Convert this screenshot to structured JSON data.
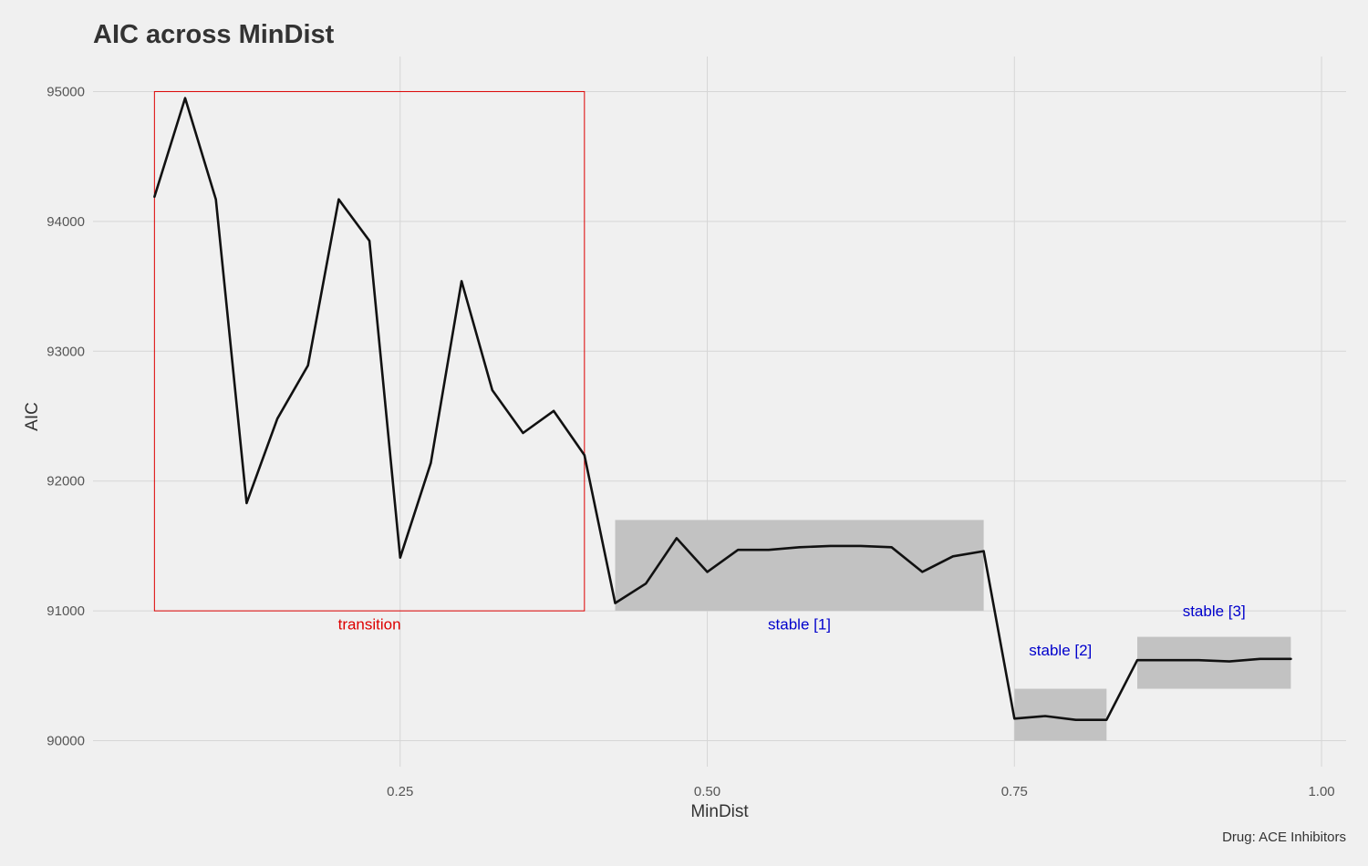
{
  "chart_data": {
    "type": "line",
    "title": "AIC across MinDist",
    "xlabel": "MinDist",
    "ylabel": "AIC",
    "caption": "Drug: ACE Inhibitors",
    "xlim": [
      0.0,
      1.02
    ],
    "ylim": [
      89800,
      95270
    ],
    "x_ticks": [
      0.25,
      0.5,
      0.75,
      1.0
    ],
    "x_tick_labels": [
      "0.25",
      "0.50",
      "0.75",
      "1.00"
    ],
    "y_ticks": [
      90000,
      91000,
      92000,
      93000,
      94000,
      95000
    ],
    "y_tick_labels": [
      "90000",
      "91000",
      "92000",
      "93000",
      "94000",
      "95000"
    ],
    "grid": true,
    "series": [
      {
        "color": "#111111",
        "x": [
          0.05,
          0.075,
          0.1,
          0.125,
          0.15,
          0.175,
          0.2,
          0.225,
          0.25,
          0.275,
          0.3,
          0.325,
          0.35,
          0.375,
          0.4,
          0.425,
          0.45,
          0.475,
          0.5,
          0.525,
          0.55,
          0.575,
          0.6,
          0.625,
          0.65,
          0.675,
          0.7,
          0.725,
          0.75,
          0.775,
          0.8,
          0.825,
          0.85,
          0.875,
          0.9,
          0.925,
          0.95,
          0.975
        ],
        "y": [
          94190,
          94950,
          94170,
          91830,
          92480,
          92890,
          94170,
          93850,
          91410,
          92140,
          93540,
          92700,
          92370,
          92540,
          92200,
          91060,
          91210,
          91560,
          91300,
          91470,
          91470,
          91490,
          91500,
          91500,
          91490,
          91300,
          91420,
          91460,
          90170,
          90190,
          90160,
          90160,
          90620,
          90620,
          90620,
          90610,
          90630,
          90630
        ]
      }
    ],
    "regions": [
      {
        "label": "transition",
        "kind": "outline",
        "x": [
          0.05,
          0.4
        ],
        "y": [
          91000,
          95000
        ],
        "color": "#dd0000",
        "label_x": 0.225,
        "label_y": 90900
      },
      {
        "label": "stable [1]",
        "kind": "shaded",
        "x": [
          0.425,
          0.725
        ],
        "y": [
          91000,
          91700
        ],
        "color": "#0000cc",
        "label_x": 0.575,
        "label_y": 90900
      },
      {
        "label": "stable [2]",
        "kind": "shaded",
        "x": [
          0.75,
          0.825
        ],
        "y": [
          90000,
          90400
        ],
        "color": "#0000cc",
        "label_x": 0.7875,
        "label_y": 90700
      },
      {
        "label": "stable [3]",
        "kind": "shaded",
        "x": [
          0.85,
          0.975
        ],
        "y": [
          90400,
          90800
        ],
        "color": "#0000cc",
        "label_x": 0.9125,
        "label_y": 91000
      }
    ]
  }
}
